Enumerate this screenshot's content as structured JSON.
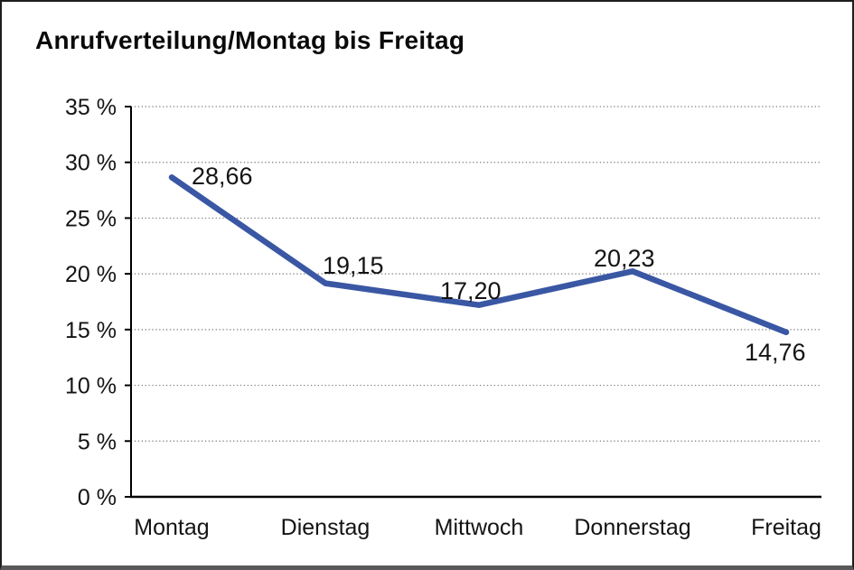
{
  "page": {
    "background": "#ffffff",
    "frame_border_color": "#1e1e1e"
  },
  "chart_data": {
    "type": "line",
    "title": "Anrufverteilung/Montag bis Freitag",
    "categories": [
      "Montag",
      "Dienstag",
      "Mittwoch",
      "Donnerstag",
      "Freitag"
    ],
    "values": [
      28.66,
      19.15,
      17.2,
      20.23,
      14.76
    ],
    "point_labels": [
      "28,66",
      "19,15",
      "17,20",
      "20,23",
      "14,76"
    ],
    "xlabel": "",
    "ylabel": "",
    "ylim": [
      0,
      35
    ],
    "y_tick_step": 5,
    "y_tick_labels": [
      "0 %",
      "5 %",
      "10 %",
      "15 %",
      "20 %",
      "25 %",
      "30 %",
      "35 %"
    ],
    "grid": "horizontal-dotted",
    "legend": "none",
    "line_color": "#3A57A4",
    "axis_color": "#000000",
    "gridline_color": "#7a7a7a",
    "text_color": "#141414"
  }
}
